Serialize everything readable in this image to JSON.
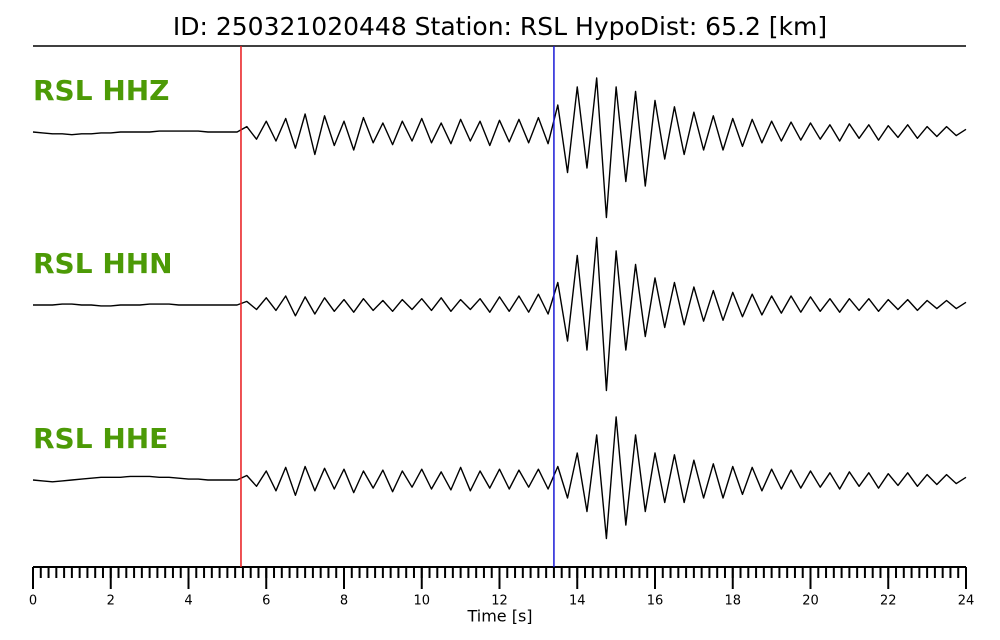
{
  "chart_data": {
    "type": "line",
    "title": "ID: 250321020448   Station: RSL   HypoDist:    65.2 [km]",
    "xlabel": "Time [s]",
    "xlim": [
      0,
      24
    ],
    "xticks": [
      0,
      2,
      4,
      6,
      8,
      10,
      12,
      14,
      16,
      18,
      20,
      22,
      24
    ],
    "xminorticks": [
      0,
      0.2,
      0.4,
      0.6,
      0.8,
      1,
      1.2,
      1.4,
      1.6,
      1.8,
      2,
      2.2,
      2.4,
      2.6,
      2.8,
      3,
      3.2,
      3.4,
      3.6,
      3.8,
      4,
      4.2,
      4.4,
      4.6,
      4.8,
      5,
      5.2,
      5.4,
      5.6,
      5.8,
      6,
      6.2,
      6.4,
      6.6,
      6.8,
      7,
      7.2,
      7.4,
      7.6,
      7.8,
      8,
      8.2,
      8.4,
      8.6,
      8.8,
      9,
      9.2,
      9.4,
      9.6,
      9.8,
      10,
      10.2,
      10.4,
      10.6,
      10.8,
      11,
      11.2,
      11.4,
      11.6,
      11.8,
      12,
      12.2,
      12.4,
      12.6,
      12.8,
      13,
      13.2,
      13.4,
      13.6,
      13.8,
      14,
      14.2,
      14.4,
      14.6,
      14.8,
      15,
      15.2,
      15.4,
      15.6,
      15.8,
      16,
      16.2,
      16.4,
      16.6,
      16.8,
      17,
      17.2,
      17.4,
      17.6,
      17.8,
      18,
      18.2,
      18.4,
      18.6,
      18.8,
      19,
      19.2,
      19.4,
      19.6,
      19.8,
      20,
      20.2,
      20.4,
      20.6,
      20.8,
      21,
      21.2,
      21.4,
      21.6,
      21.8,
      22,
      22.2,
      22.4,
      22.6,
      22.8,
      23,
      23.2,
      23.4,
      23.6,
      23.8,
      24
    ],
    "ylim": [
      -1,
      1
    ],
    "label_color": "#4c9a06",
    "markers": [
      {
        "x": 5.35,
        "color": "#e8191c"
      },
      {
        "x": 13.4,
        "color": "#1a1ad6"
      }
    ],
    "x": [
      0,
      0.25,
      0.5,
      0.75,
      1,
      1.25,
      1.5,
      1.75,
      2,
      2.25,
      2.5,
      2.75,
      3,
      3.25,
      3.5,
      3.75,
      4,
      4.25,
      4.5,
      4.75,
      5,
      5.25,
      5.5,
      5.75,
      6,
      6.25,
      6.5,
      6.75,
      7,
      7.25,
      7.5,
      7.75,
      8,
      8.25,
      8.5,
      8.75,
      9,
      9.25,
      9.5,
      9.75,
      10,
      10.25,
      10.5,
      10.75,
      11,
      11.25,
      11.5,
      11.75,
      12,
      12.25,
      12.5,
      12.75,
      13,
      13.25,
      13.5,
      13.75,
      14,
      14.25,
      14.5,
      14.75,
      15,
      15.25,
      15.5,
      15.75,
      16,
      16.25,
      16.5,
      16.75,
      17,
      17.25,
      17.5,
      17.75,
      18,
      18.25,
      18.5,
      18.75,
      19,
      19.25,
      19.5,
      19.75,
      20,
      20.25,
      20.5,
      20.75,
      21,
      21.25,
      21.5,
      21.75,
      22,
      22.25,
      22.5,
      22.75,
      23,
      23.25,
      23.5,
      23.75,
      24
    ],
    "series": [
      {
        "name": "RSL HHZ",
        "color": "#000000",
        "values": [
          0,
          -0.01,
          -0.02,
          -0.02,
          -0.03,
          -0.02,
          -0.02,
          -0.01,
          -0.01,
          0,
          0,
          0,
          0,
          0.01,
          0.01,
          0.01,
          0.01,
          0.01,
          0,
          0,
          0,
          0,
          0.06,
          -0.08,
          0.12,
          -0.1,
          0.15,
          -0.18,
          0.2,
          -0.25,
          0.18,
          -0.15,
          0.12,
          -0.2,
          0.16,
          -0.12,
          0.1,
          -0.14,
          0.12,
          -0.1,
          0.15,
          -0.12,
          0.1,
          -0.13,
          0.14,
          -0.1,
          0.12,
          -0.15,
          0.13,
          -0.11,
          0.14,
          -0.12,
          0.16,
          -0.13,
          0.3,
          -0.45,
          0.5,
          -0.4,
          0.6,
          -0.95,
          0.5,
          -0.55,
          0.45,
          -0.6,
          0.35,
          -0.3,
          0.28,
          -0.25,
          0.22,
          -0.2,
          0.18,
          -0.2,
          0.15,
          -0.16,
          0.14,
          -0.12,
          0.12,
          -0.1,
          0.11,
          -0.09,
          0.1,
          -0.08,
          0.08,
          -0.1,
          0.09,
          -0.07,
          0.08,
          -0.09,
          0.07,
          -0.06,
          0.08,
          -0.07,
          0.06,
          -0.05,
          0.06,
          -0.04,
          0.03
        ]
      },
      {
        "name": "RSL HHN",
        "color": "#000000",
        "values": [
          0,
          0,
          0,
          0.01,
          0.01,
          0,
          0,
          -0.01,
          -0.01,
          0,
          0,
          0,
          0.01,
          0.01,
          0.01,
          0,
          0,
          0,
          0,
          0,
          0,
          0,
          0.04,
          -0.05,
          0.08,
          -0.06,
          0.1,
          -0.12,
          0.09,
          -0.1,
          0.08,
          -0.07,
          0.06,
          -0.08,
          0.07,
          -0.06,
          0.05,
          -0.07,
          0.06,
          -0.05,
          0.07,
          -0.06,
          0.08,
          -0.07,
          0.06,
          -0.05,
          0.07,
          -0.08,
          0.09,
          -0.07,
          0.1,
          -0.08,
          0.12,
          -0.1,
          0.25,
          -0.4,
          0.55,
          -0.5,
          0.75,
          -0.95,
          0.6,
          -0.5,
          0.45,
          -0.35,
          0.3,
          -0.25,
          0.25,
          -0.22,
          0.2,
          -0.18,
          0.16,
          -0.17,
          0.14,
          -0.13,
          0.12,
          -0.11,
          0.1,
          -0.09,
          0.1,
          -0.08,
          0.09,
          -0.07,
          0.07,
          -0.08,
          0.07,
          -0.06,
          0.07,
          -0.07,
          0.06,
          -0.05,
          0.06,
          -0.06,
          0.05,
          -0.04,
          0.05,
          -0.04,
          0.03
        ]
      },
      {
        "name": "RSL HHE",
        "color": "#000000",
        "values": [
          0,
          -0.01,
          -0.02,
          -0.01,
          0,
          0.01,
          0.02,
          0.03,
          0.03,
          0.03,
          0.04,
          0.04,
          0.04,
          0.03,
          0.03,
          0.02,
          0.01,
          0.01,
          0,
          0,
          0,
          0,
          0.05,
          -0.07,
          0.1,
          -0.12,
          0.14,
          -0.17,
          0.15,
          -0.12,
          0.13,
          -0.1,
          0.12,
          -0.14,
          0.1,
          -0.09,
          0.11,
          -0.13,
          0.1,
          -0.08,
          0.12,
          -0.1,
          0.09,
          -0.11,
          0.14,
          -0.12,
          0.1,
          -0.09,
          0.12,
          -0.1,
          0.11,
          -0.08,
          0.12,
          -0.1,
          0.15,
          -0.2,
          0.3,
          -0.35,
          0.5,
          -0.65,
          0.7,
          -0.5,
          0.5,
          -0.35,
          0.3,
          -0.25,
          0.28,
          -0.25,
          0.22,
          -0.2,
          0.18,
          -0.2,
          0.15,
          -0.16,
          0.14,
          -0.12,
          0.12,
          -0.1,
          0.11,
          -0.09,
          0.1,
          -0.08,
          0.08,
          -0.1,
          0.09,
          -0.07,
          0.08,
          -0.09,
          0.07,
          -0.06,
          0.08,
          -0.07,
          0.06,
          -0.05,
          0.06,
          -0.04,
          0.03
        ]
      }
    ]
  }
}
